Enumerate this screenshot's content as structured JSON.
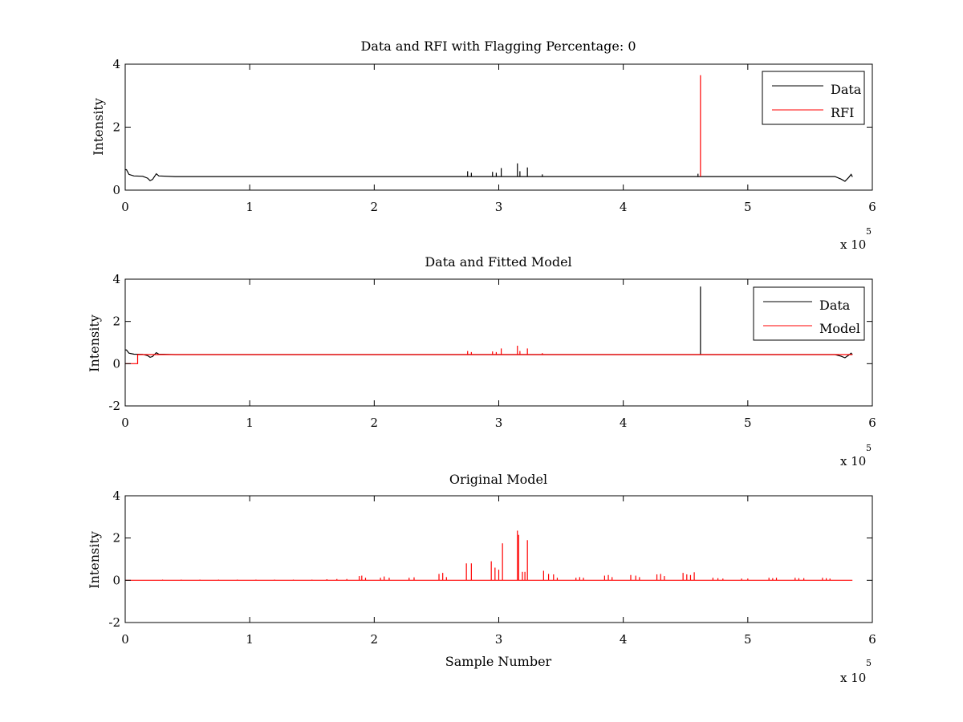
{
  "figure": {
    "background": "#ffffff",
    "colors": {
      "data": "#000000",
      "rfi": "#ff0000",
      "model": "#ff0000"
    },
    "x_multiplier_label": "x 10",
    "x_multiplier_exponent": "5"
  },
  "chart_data": [
    {
      "type": "line",
      "title": "Data and RFI with Flagging Percentage: 0",
      "xlabel": "",
      "ylabel": "Intensity",
      "xlim": [
        0,
        6
      ],
      "ylim": [
        0,
        4
      ],
      "xticks": [
        "0",
        "1",
        "2",
        "3",
        "4",
        "5",
        "6"
      ],
      "yticks": [
        "0",
        "2",
        "4"
      ],
      "x_multiplier": "x 10^5",
      "grid": false,
      "legend_position": "top-right",
      "series": [
        {
          "name": "Data",
          "color": "#000000",
          "baseline": 0.43,
          "segments": [
            [
              0.0,
              0.65
            ],
            [
              0.01,
              0.65
            ],
            [
              0.03,
              0.5
            ],
            [
              0.07,
              0.45
            ],
            [
              0.14,
              0.44
            ],
            [
              0.18,
              0.38
            ],
            [
              0.2,
              0.3
            ],
            [
              0.22,
              0.34
            ],
            [
              0.25,
              0.52
            ],
            [
              0.27,
              0.45
            ],
            [
              0.4,
              0.43
            ],
            [
              5.7,
              0.43
            ],
            [
              5.75,
              0.35
            ],
            [
              5.78,
              0.28
            ],
            [
              5.81,
              0.4
            ],
            [
              5.83,
              0.5
            ],
            [
              5.84,
              0.42
            ]
          ],
          "spikes": [
            [
              2.75,
              0.6
            ],
            [
              2.78,
              0.55
            ],
            [
              2.95,
              0.58
            ],
            [
              2.98,
              0.55
            ],
            [
              3.02,
              0.7
            ],
            [
              3.15,
              0.85
            ],
            [
              3.17,
              0.6
            ],
            [
              3.23,
              0.72
            ],
            [
              3.35,
              0.5
            ],
            [
              4.6,
              0.52
            ]
          ]
        },
        {
          "name": "RFI",
          "color": "#ff0000",
          "baseline": 0.43,
          "spikes": [
            [
              4.62,
              3.65
            ]
          ]
        }
      ]
    },
    {
      "type": "line",
      "title": "Data and Fitted Model",
      "xlabel": "",
      "ylabel": "Intensity",
      "xlim": [
        0,
        6
      ],
      "ylim": [
        -2,
        4
      ],
      "xticks": [
        "0",
        "1",
        "2",
        "3",
        "4",
        "5",
        "6"
      ],
      "yticks": [
        "-2",
        "0",
        "2",
        "4"
      ],
      "x_multiplier": "x 10^5",
      "grid": false,
      "legend_position": "top-right",
      "series": [
        {
          "name": "Data",
          "color": "#000000",
          "baseline": 0.43,
          "segments": [
            [
              0.0,
              0.65
            ],
            [
              0.01,
              0.65
            ],
            [
              0.03,
              0.5
            ],
            [
              0.07,
              0.45
            ],
            [
              0.14,
              0.44
            ],
            [
              0.18,
              0.38
            ],
            [
              0.2,
              0.3
            ],
            [
              0.22,
              0.34
            ],
            [
              0.25,
              0.52
            ],
            [
              0.27,
              0.45
            ],
            [
              0.4,
              0.43
            ],
            [
              5.7,
              0.43
            ],
            [
              5.75,
              0.35
            ],
            [
              5.78,
              0.28
            ],
            [
              5.81,
              0.4
            ],
            [
              5.83,
              0.5
            ],
            [
              5.84,
              0.42
            ]
          ],
          "spikes": [
            [
              4.62,
              3.65
            ]
          ]
        },
        {
          "name": "Model",
          "color": "#ff0000",
          "baseline": 0.43,
          "segments": [
            [
              0.0,
              0.0
            ],
            [
              0.1,
              0.0
            ],
            [
              0.1,
              0.43
            ],
            [
              5.84,
              0.43
            ]
          ],
          "spikes": [
            [
              2.75,
              0.6
            ],
            [
              2.78,
              0.55
            ],
            [
              2.95,
              0.58
            ],
            [
              2.98,
              0.55
            ],
            [
              3.02,
              0.72
            ],
            [
              3.15,
              0.85
            ],
            [
              3.17,
              0.6
            ],
            [
              3.23,
              0.72
            ],
            [
              3.35,
              0.5
            ]
          ]
        }
      ]
    },
    {
      "type": "line",
      "title": "Original Model",
      "xlabel": "Sample Number",
      "ylabel": "Intensity",
      "xlim": [
        0,
        6
      ],
      "ylim": [
        -2,
        4
      ],
      "xticks": [
        "0",
        "1",
        "2",
        "3",
        "4",
        "5",
        "6"
      ],
      "yticks": [
        "-2",
        "0",
        "2",
        "4"
      ],
      "x_multiplier": "x 10^5",
      "grid": false,
      "legend_position": "none",
      "series": [
        {
          "name": "",
          "color": "#ff0000",
          "baseline": 0.0,
          "segments": [
            [
              0.0,
              0.0
            ],
            [
              5.84,
              0.0
            ]
          ],
          "spikes": [
            [
              0.3,
              0.03
            ],
            [
              0.45,
              0.03
            ],
            [
              0.6,
              0.03
            ],
            [
              0.75,
              0.03
            ],
            [
              0.9,
              0.03
            ],
            [
              1.05,
              0.03
            ],
            [
              1.2,
              0.03
            ],
            [
              1.35,
              0.03
            ],
            [
              1.5,
              0.03
            ],
            [
              1.62,
              0.05
            ],
            [
              1.7,
              0.06
            ],
            [
              1.78,
              0.06
            ],
            [
              1.88,
              0.2
            ],
            [
              1.9,
              0.22
            ],
            [
              1.93,
              0.12
            ],
            [
              2.05,
              0.12
            ],
            [
              2.08,
              0.18
            ],
            [
              2.12,
              0.12
            ],
            [
              2.28,
              0.12
            ],
            [
              2.32,
              0.14
            ],
            [
              2.52,
              0.3
            ],
            [
              2.55,
              0.35
            ],
            [
              2.58,
              0.15
            ],
            [
              2.74,
              0.8
            ],
            [
              2.78,
              0.8
            ],
            [
              2.94,
              0.9
            ],
            [
              2.97,
              0.6
            ],
            [
              3.0,
              0.5
            ],
            [
              3.03,
              1.75
            ],
            [
              3.15,
              2.35
            ],
            [
              3.16,
              2.15
            ],
            [
              3.19,
              0.4
            ],
            [
              3.21,
              0.4
            ],
            [
              3.23,
              1.9
            ],
            [
              3.36,
              0.45
            ],
            [
              3.4,
              0.3
            ],
            [
              3.44,
              0.28
            ],
            [
              3.47,
              0.12
            ],
            [
              3.62,
              0.12
            ],
            [
              3.65,
              0.15
            ],
            [
              3.68,
              0.12
            ],
            [
              3.85,
              0.22
            ],
            [
              3.88,
              0.25
            ],
            [
              3.91,
              0.15
            ],
            [
              4.06,
              0.25
            ],
            [
              4.1,
              0.22
            ],
            [
              4.13,
              0.15
            ],
            [
              4.27,
              0.28
            ],
            [
              4.3,
              0.3
            ],
            [
              4.33,
              0.2
            ],
            [
              4.48,
              0.35
            ],
            [
              4.51,
              0.28
            ],
            [
              4.54,
              0.25
            ],
            [
              4.57,
              0.38
            ],
            [
              4.72,
              0.12
            ],
            [
              4.76,
              0.1
            ],
            [
              4.8,
              0.08
            ],
            [
              4.95,
              0.08
            ],
            [
              5.0,
              0.08
            ],
            [
              5.17,
              0.12
            ],
            [
              5.2,
              0.1
            ],
            [
              5.23,
              0.12
            ],
            [
              5.38,
              0.12
            ],
            [
              5.41,
              0.1
            ],
            [
              5.45,
              0.1
            ],
            [
              5.6,
              0.12
            ],
            [
              5.63,
              0.1
            ],
            [
              5.66,
              0.08
            ]
          ]
        }
      ]
    }
  ]
}
